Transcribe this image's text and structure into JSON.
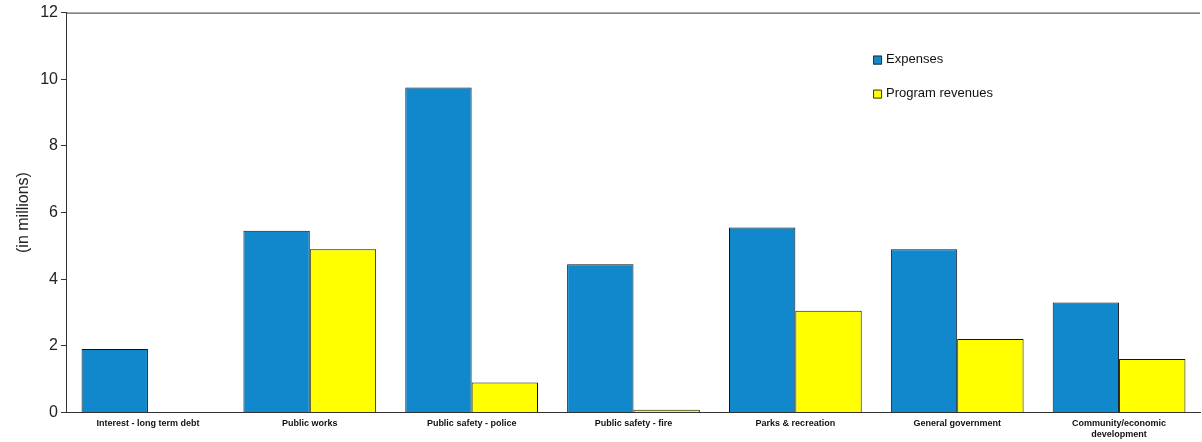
{
  "chart_data": {
    "type": "bar",
    "ylabel": "(in millions)",
    "categories": [
      "Interest - long term debt",
      "Public works",
      "Public safety - police",
      "Public safety - fire",
      "Parks & recreation",
      "General government",
      "Community/economic development"
    ],
    "series": [
      {
        "name": "Expenses",
        "color": "#1188cc",
        "values": [
          1.9,
          5.45,
          9.75,
          4.45,
          5.55,
          4.9,
          3.3
        ]
      },
      {
        "name": "Program revenues",
        "color": "#ffff00",
        "values": [
          0,
          4.9,
          0.9,
          0.08,
          3.05,
          2.2,
          1.6
        ]
      }
    ],
    "ylim": [
      0,
      12
    ],
    "yticks": [
      0,
      2,
      4,
      6,
      8,
      10,
      12
    ],
    "grid": false,
    "legend": "top right"
  }
}
